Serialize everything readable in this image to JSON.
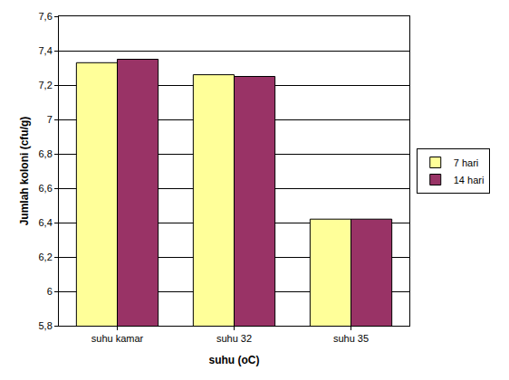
{
  "chart_data": {
    "type": "bar",
    "x_label": "suhu (oC)",
    "y_label": "Jumlah koloni (cfu/g)",
    "categories": [
      "suhu kamar",
      "suhu 32",
      "suhu 35"
    ],
    "series": [
      {
        "name": "7 hari",
        "color": "#ffff99",
        "values": [
          7.33,
          7.26,
          6.42
        ]
      },
      {
        "name": "14 hari",
        "color": "#993366",
        "values": [
          7.35,
          7.25,
          6.42
        ]
      }
    ],
    "ylim": [
      5.8,
      7.6
    ],
    "yticks": [
      {
        "value": 5.8,
        "label": "5,8"
      },
      6,
      {
        "value": 6.2,
        "label": "6,2"
      },
      {
        "value": 6.4,
        "label": "6,4"
      },
      {
        "value": 6.6,
        "label": "6,6"
      },
      {
        "value": 6.8,
        "label": "6,8"
      },
      7,
      {
        "value": 7.2,
        "label": "7,2"
      },
      {
        "value": 7.4,
        "label": "7,4"
      },
      {
        "value": 7.6,
        "label": "7,6"
      }
    ],
    "grid": true,
    "legend": "right"
  }
}
